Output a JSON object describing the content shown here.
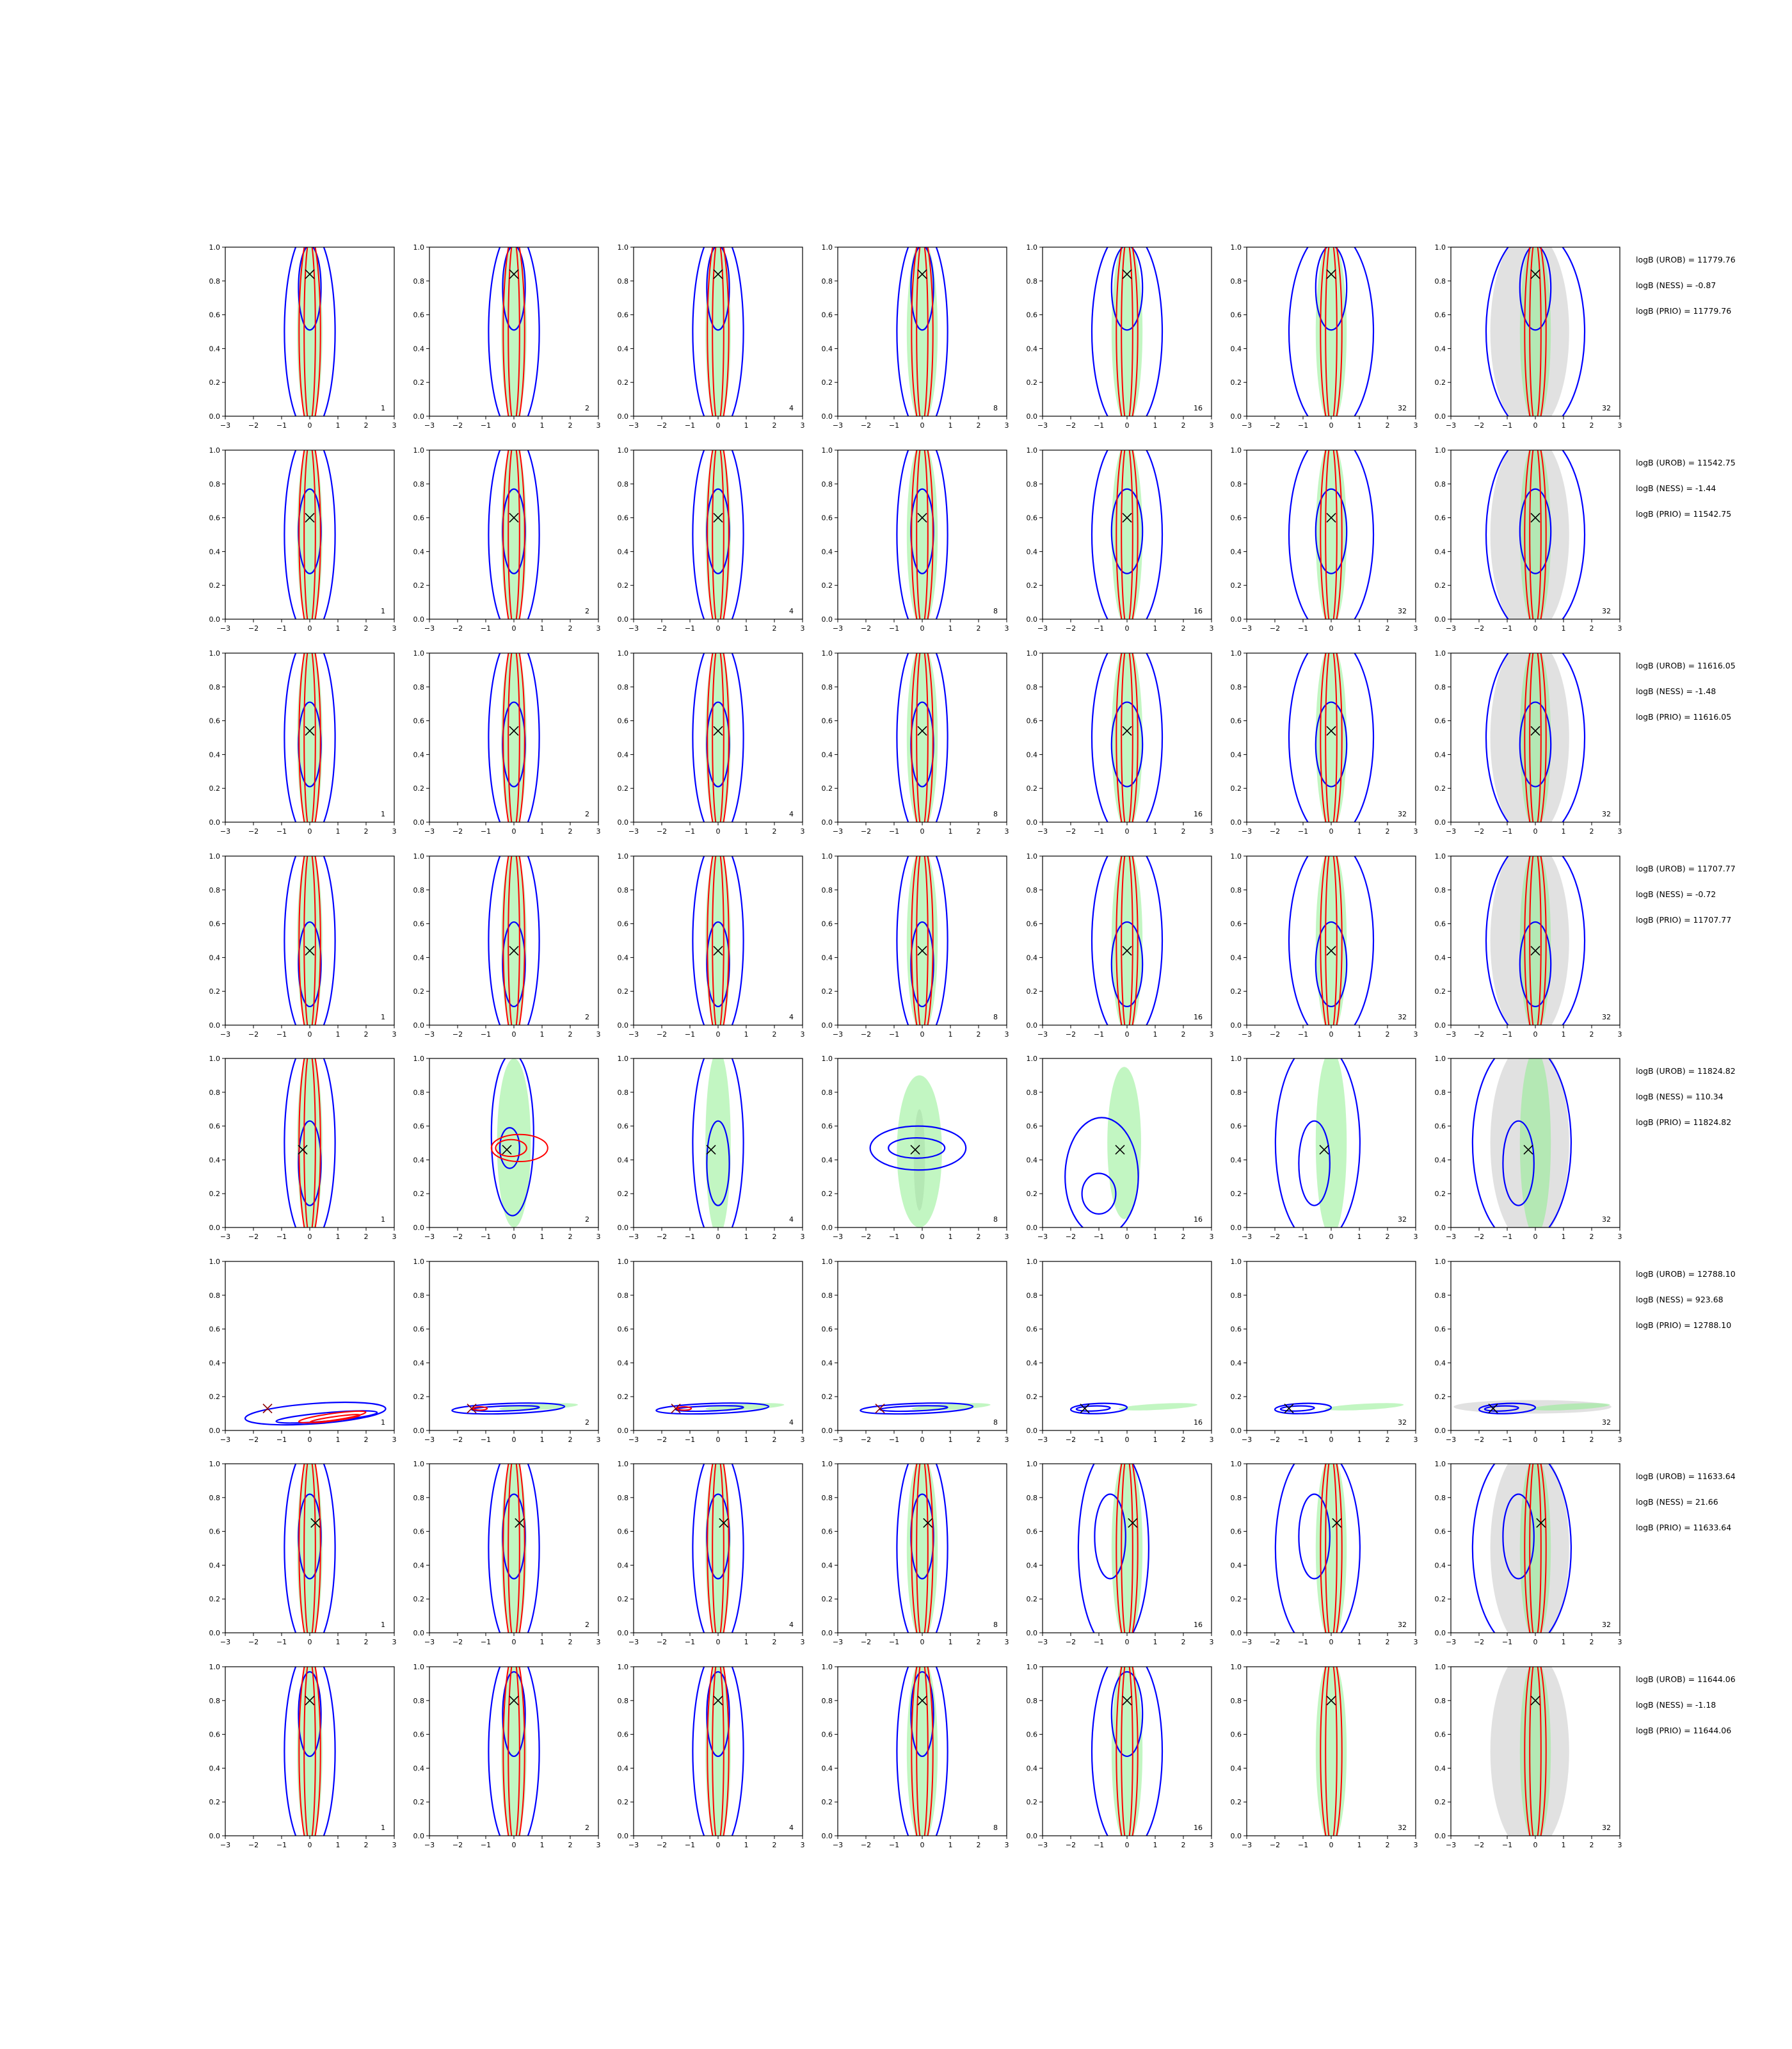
{
  "chart_data": {
    "type": "contour",
    "layout": "grid of 2D density panels, 8 rows x 7 columns",
    "x_range": [
      -3,
      3
    ],
    "y_range": [
      0.0,
      1.0
    ],
    "x_ticks": [
      "−3",
      "−2",
      "−1",
      "0",
      "1",
      "2",
      "3"
    ],
    "y_ticks": [
      "0.0",
      "0.2",
      "0.4",
      "0.6",
      "0.8",
      "1.0"
    ],
    "grid": false,
    "legend": "none",
    "column_counts": [
      "1",
      "2",
      "4",
      "8",
      "16",
      "32",
      "32"
    ],
    "colors": {
      "blue_contour": "#0000ff",
      "red_contour": "#ff0000",
      "green_fill": "#90ee90",
      "gray_fill": "#c8c8c8",
      "marker": "#000000",
      "marker_row6": "#8b0000"
    },
    "rows": [
      {
        "marker": {
          "x": 0.0,
          "y": 0.84
        },
        "annotations": [
          "logB (UROB) = 11779.76",
          "logB (NESS) = -0.87",
          "logB (PRIO) = 11779.76"
        ]
      },
      {
        "marker": {
          "x": 0.0,
          "y": 0.6
        },
        "annotations": [
          "logB (UROB) = 11542.75",
          "logB (NESS) = -1.44",
          "logB (PRIO) = 11542.75"
        ]
      },
      {
        "marker": {
          "x": 0.0,
          "y": 0.54
        },
        "annotations": [
          "logB (UROB) = 11616.05",
          "logB (NESS) = -1.48",
          "logB (PRIO) = 11616.05"
        ]
      },
      {
        "marker": {
          "x": 0.0,
          "y": 0.44
        },
        "annotations": [
          "logB (UROB) = 11707.77",
          "logB (NESS) = -0.72",
          "logB (PRIO) = 11707.77"
        ]
      },
      {
        "marker": {
          "x": -0.25,
          "y": 0.46
        },
        "annotations": [
          "logB (UROB) = 11824.82",
          "logB (NESS) = 110.34",
          "logB (PRIO) = 11824.82"
        ]
      },
      {
        "marker": {
          "x": -1.5,
          "y": 0.13
        },
        "annotations": [
          "logB (UROB) = 12788.10",
          "logB (NESS) = 923.68",
          "logB (PRIO) = 12788.10"
        ]
      },
      {
        "marker": {
          "x": 0.2,
          "y": 0.65
        },
        "annotations": [
          "logB (UROB) = 11633.64",
          "logB (NESS) = 21.66",
          "logB (PRIO) = 11633.64"
        ]
      },
      {
        "marker": {
          "x": 0.0,
          "y": 0.8
        },
        "annotations": [
          "logB (UROB) = 11644.06",
          "logB (NESS) = -1.18",
          "logB (PRIO) = 11644.06"
        ]
      }
    ]
  }
}
